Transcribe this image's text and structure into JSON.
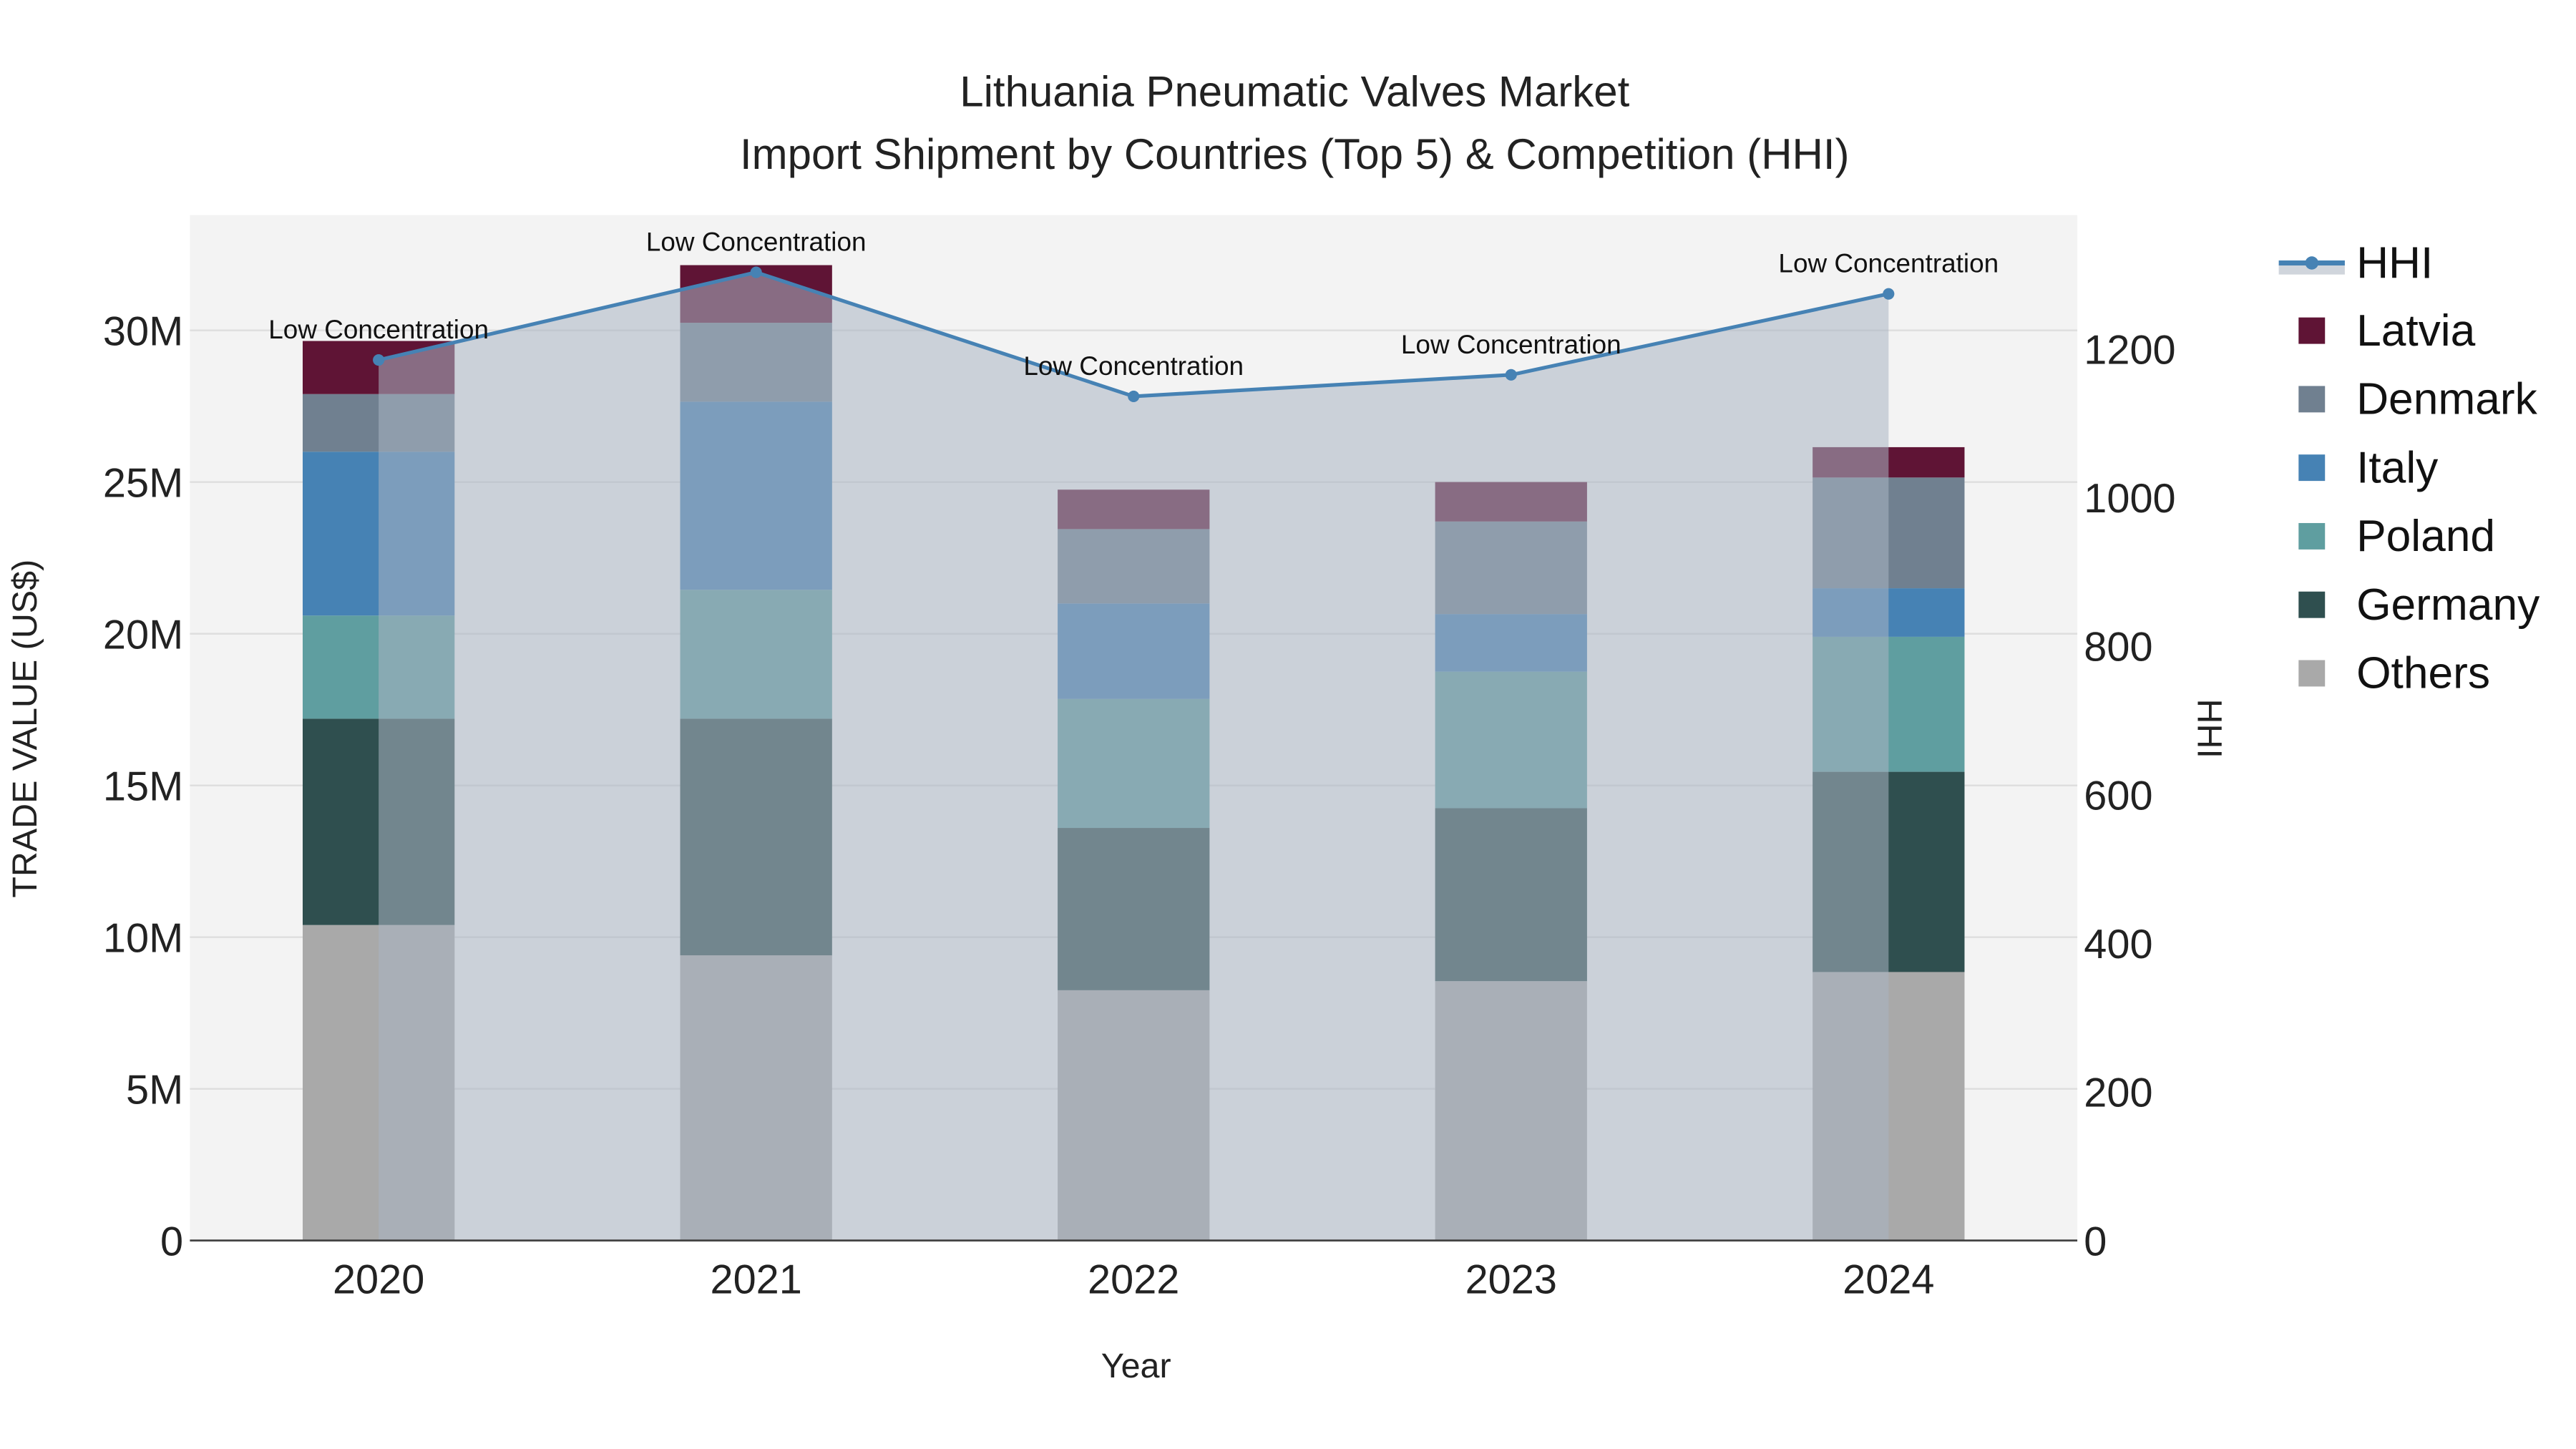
{
  "chart_data": {
    "type": "bar",
    "title": "Lithuania Pneumatic Valves Market",
    "subtitle": "Import Shipment by Countries (Top 5) & Competition (HHI)",
    "xlabel": "Year",
    "ylabel": "TRADE VALUE (US$)",
    "y2label": "HHI",
    "categories": [
      "2020",
      "2021",
      "2022",
      "2023",
      "2024"
    ],
    "ylim": [
      0,
      33800000
    ],
    "y2lim": [
      0,
      1380
    ],
    "yticks": [
      {
        "v": 0,
        "label": "0"
      },
      {
        "v": 5000000,
        "label": "5M"
      },
      {
        "v": 10000000,
        "label": "10M"
      },
      {
        "v": 15000000,
        "label": "15M"
      },
      {
        "v": 20000000,
        "label": "20M"
      },
      {
        "v": 25000000,
        "label": "25M"
      },
      {
        "v": 30000000,
        "label": "30M"
      }
    ],
    "y2ticks": [
      0,
      200,
      400,
      600,
      800,
      1000,
      1200
    ],
    "stack_order": "bottom-to-top",
    "series": [
      {
        "name": "Others",
        "color": "#a9a9a9",
        "values": [
          10400000,
          9400000,
          8250000,
          8550000,
          8850000
        ]
      },
      {
        "name": "Germany",
        "color": "#2f4f4f",
        "values": [
          6800000,
          7800000,
          5350000,
          5700000,
          6600000
        ]
      },
      {
        "name": "Poland",
        "color": "#5f9ea0",
        "values": [
          3400000,
          4250000,
          4250000,
          4500000,
          4450000
        ]
      },
      {
        "name": "Italy",
        "color": "#4682b4",
        "values": [
          5400000,
          6200000,
          3150000,
          1900000,
          1600000
        ]
      },
      {
        "name": "Denmark",
        "color": "#708090",
        "values": [
          1900000,
          2600000,
          2450000,
          3050000,
          3650000
        ]
      },
      {
        "name": "Latvia",
        "color": "#5f1435",
        "values": [
          1750000,
          1900000,
          1300000,
          1300000,
          1000000
        ]
      }
    ],
    "hhi": {
      "name": "HHI",
      "color": "#4682b4",
      "values": [
        1185,
        1303,
        1136,
        1165,
        1274
      ],
      "annotations": [
        "Low Concentration",
        "Low Concentration",
        "Low Concentration",
        "Low Concentration",
        "Low Concentration"
      ]
    },
    "legend": {
      "placement": "right",
      "order": [
        "HHI",
        "Latvia",
        "Denmark",
        "Italy",
        "Poland",
        "Germany",
        "Others"
      ]
    },
    "grid": true
  }
}
